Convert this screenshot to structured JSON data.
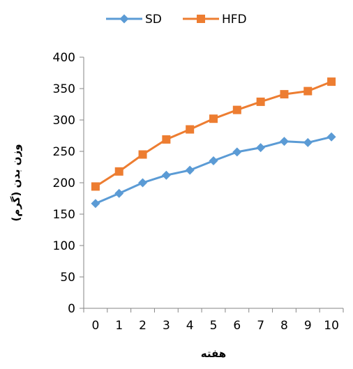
{
  "chart_data": {
    "type": "line",
    "title": "",
    "xlabel": "هفته",
    "ylabel": "وزن بدن (گرم)",
    "x": [
      0,
      1,
      2,
      3,
      4,
      5,
      6,
      7,
      8,
      9,
      10
    ],
    "xlim": [
      0,
      10
    ],
    "ylim": [
      0,
      400
    ],
    "y_ticks": [
      0,
      50,
      100,
      150,
      200,
      250,
      300,
      350,
      400
    ],
    "grid": false,
    "legend_position": "top",
    "series": [
      {
        "name": "SD",
        "color": "#5B9BD5",
        "marker": "diamond",
        "values": [
          167,
          183,
          200,
          212,
          220,
          235,
          249,
          256,
          266,
          264,
          273
        ]
      },
      {
        "name": "HFD",
        "color": "#ED7D31",
        "marker": "square",
        "values": [
          194,
          218,
          245,
          269,
          285,
          302,
          316,
          329,
          341,
          346,
          361
        ]
      }
    ]
  }
}
